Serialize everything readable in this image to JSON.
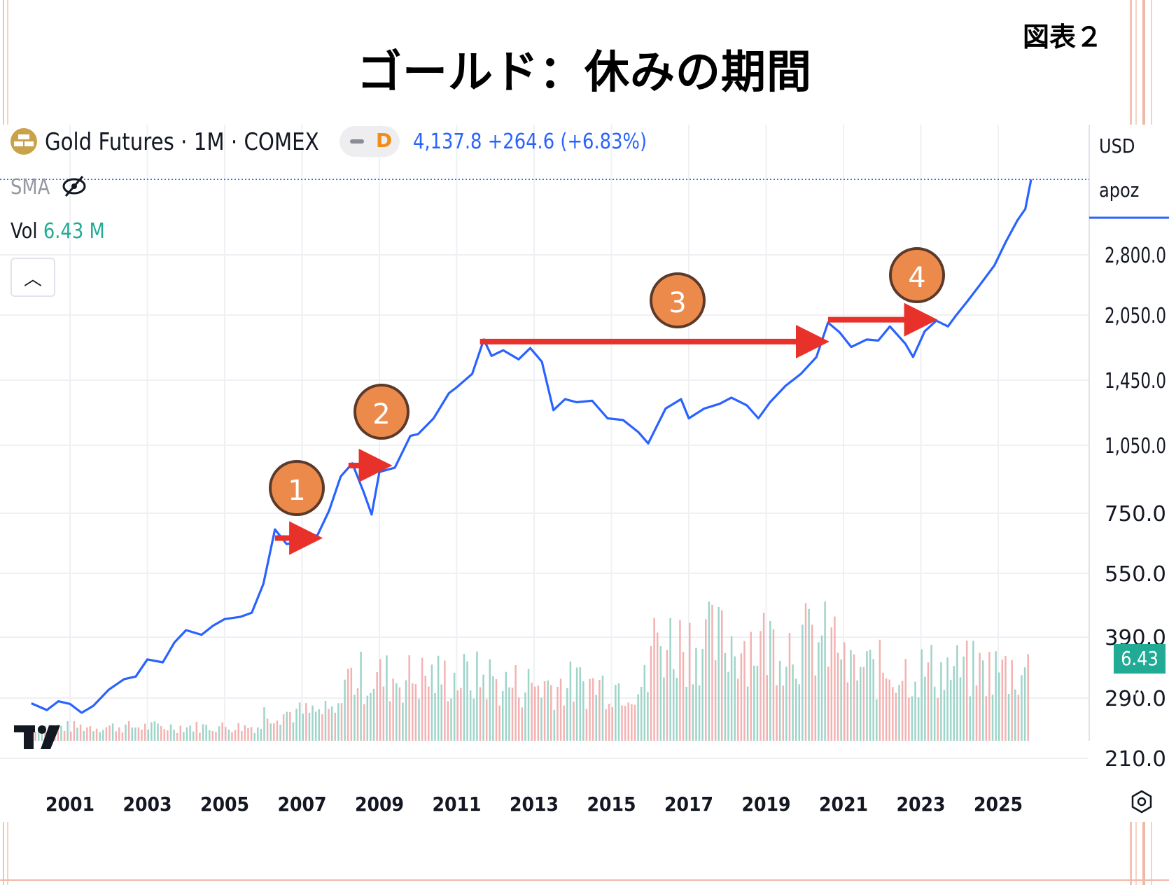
{
  "slide": {
    "title": "ゴールド：休みの期間",
    "figure_label": "図表２"
  },
  "chart_header": {
    "symbol_icon": "gold-bars-icon",
    "symbol": "Gold Futures · 1M · COMEX",
    "interval_badge": "D",
    "price": "4,137.8",
    "change": "+264.6 (+6.83%)",
    "indicator_sma": "SMA",
    "indicator_vol_label": "Vol",
    "indicator_vol_value": "6.43 M",
    "collapse_icon": "chevron-up-icon"
  },
  "price_scale": {
    "currency": "USD",
    "unit": "apoz",
    "volume_badge": "6.43 M"
  },
  "markers": [
    "1",
    "2",
    "3",
    "4"
  ],
  "colors": {
    "price_line": "#2962ff",
    "arrow": "#e8312a",
    "marker_fill": "#ec8a4c",
    "volume_up": "#9fd4c9",
    "volume_down": "#f3b2b2"
  },
  "chart_data": {
    "type": "line",
    "title": "Gold Futures · 1M · COMEX",
    "scale": "log",
    "ylabel": "USD",
    "y_ticks": [
      210,
      290,
      390,
      550,
      750,
      1050,
      1450,
      2050,
      2800
    ],
    "y_tick_labels": [
      "210.0",
      "290.0",
      "390.0",
      "550.0",
      "750.0",
      "1,050.0",
      "1,450.0",
      "2,050.0",
      "2,800.0"
    ],
    "x_ticks": [
      2001,
      2003,
      2005,
      2007,
      2009,
      2011,
      2013,
      2015,
      2017,
      2019,
      2021,
      2023,
      2025
    ],
    "series": [
      {
        "points": [
          [
            2000.0,
            282
          ],
          [
            2000.4,
            272
          ],
          [
            2000.7,
            285
          ],
          [
            2001.0,
            281
          ],
          [
            2001.3,
            268
          ],
          [
            2001.6,
            278
          ],
          [
            2002.0,
            302
          ],
          [
            2002.4,
            318
          ],
          [
            2002.7,
            322
          ],
          [
            2003.0,
            350
          ],
          [
            2003.4,
            345
          ],
          [
            2003.7,
            380
          ],
          [
            2004.0,
            405
          ],
          [
            2004.4,
            395
          ],
          [
            2004.7,
            415
          ],
          [
            2005.0,
            430
          ],
          [
            2005.4,
            435
          ],
          [
            2005.7,
            445
          ],
          [
            2006.0,
            520
          ],
          [
            2006.3,
            690
          ],
          [
            2006.6,
            640
          ],
          [
            2007.0,
            650
          ],
          [
            2007.4,
            670
          ],
          [
            2007.7,
            760
          ],
          [
            2008.0,
            900
          ],
          [
            2008.3,
            960
          ],
          [
            2008.6,
            830
          ],
          [
            2008.8,
            745
          ],
          [
            2009.0,
            920
          ],
          [
            2009.4,
            940
          ],
          [
            2009.8,
            1100
          ],
          [
            2010.0,
            1110
          ],
          [
            2010.4,
            1200
          ],
          [
            2010.8,
            1360
          ],
          [
            2011.0,
            1400
          ],
          [
            2011.4,
            1500
          ],
          [
            2011.7,
            1800
          ],
          [
            2011.9,
            1650
          ],
          [
            2012.2,
            1700
          ],
          [
            2012.6,
            1620
          ],
          [
            2012.9,
            1720
          ],
          [
            2013.2,
            1600
          ],
          [
            2013.5,
            1250
          ],
          [
            2013.8,
            1320
          ],
          [
            2014.1,
            1300
          ],
          [
            2014.5,
            1310
          ],
          [
            2014.9,
            1200
          ],
          [
            2015.3,
            1190
          ],
          [
            2015.7,
            1120
          ],
          [
            2015.95,
            1060
          ],
          [
            2016.4,
            1260
          ],
          [
            2016.8,
            1320
          ],
          [
            2017.0,
            1200
          ],
          [
            2017.4,
            1260
          ],
          [
            2017.8,
            1290
          ],
          [
            2018.1,
            1330
          ],
          [
            2018.5,
            1280
          ],
          [
            2018.8,
            1200
          ],
          [
            2019.1,
            1300
          ],
          [
            2019.5,
            1410
          ],
          [
            2019.9,
            1500
          ],
          [
            2020.3,
            1640
          ],
          [
            2020.6,
            1970
          ],
          [
            2020.9,
            1870
          ],
          [
            2021.2,
            1730
          ],
          [
            2021.6,
            1800
          ],
          [
            2021.9,
            1790
          ],
          [
            2022.2,
            1930
          ],
          [
            2022.6,
            1760
          ],
          [
            2022.8,
            1640
          ],
          [
            2023.1,
            1880
          ],
          [
            2023.4,
            1990
          ],
          [
            2023.7,
            1930
          ],
          [
            2023.9,
            2040
          ],
          [
            2024.2,
            2200
          ],
          [
            2024.5,
            2380
          ],
          [
            2024.9,
            2650
          ],
          [
            2025.2,
            3000
          ],
          [
            2025.5,
            3350
          ],
          [
            2025.7,
            3550
          ],
          [
            2025.85,
            4137.8
          ]
        ]
      }
    ],
    "annotations": [
      {
        "label": "1",
        "from": 2006.3,
        "to": 2007.5,
        "level": 660
      },
      {
        "label": "2",
        "from": 2008.2,
        "to": 2009.3,
        "level": 950
      },
      {
        "label": "3",
        "from": 2011.6,
        "to": 2020.6,
        "level": 1780
      },
      {
        "label": "4",
        "from": 2020.6,
        "to": 2023.4,
        "level": 2000
      }
    ],
    "volume_last": "6.43 M"
  }
}
